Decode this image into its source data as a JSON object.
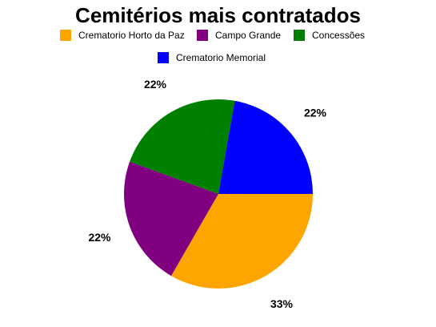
{
  "chart_data": {
    "type": "pie",
    "title": "Cemitérios mais contratados",
    "legend_position": "top",
    "slices": [
      {
        "name": "Crematorio Horto da Paz",
        "value": 33,
        "label": "33%",
        "color": "#FFA500"
      },
      {
        "name": "Campo Grande",
        "value": 22,
        "label": "22%",
        "color": "#800080"
      },
      {
        "name": "Concessões",
        "value": 22,
        "label": "22%",
        "color": "#008000"
      },
      {
        "name": "Crematorio Memorial",
        "value": 22,
        "label": "22%",
        "color": "#0000FF"
      }
    ]
  }
}
